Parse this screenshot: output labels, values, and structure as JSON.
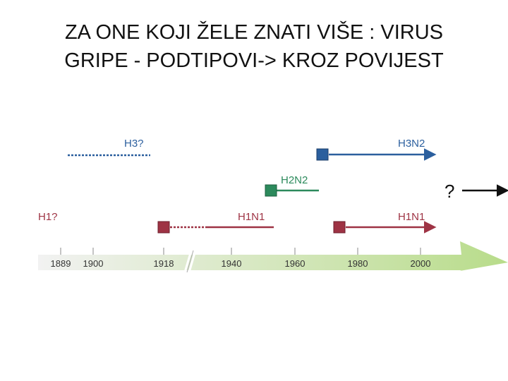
{
  "title": {
    "line1": "ZA ONE KOJI ŽELE ZNATI VIŠE : VIRUS",
    "line2": "GRIPE - PODTIPOVI-> KROZ POVIJEST"
  },
  "timeline": {
    "years": [
      "1889",
      "1900",
      "1918",
      "1940",
      "1960",
      "1980",
      "2000"
    ]
  },
  "subtypes": {
    "h3_unknown": "H3?",
    "h3n2": "H3N2",
    "h2n2": "H2N2",
    "h1_unknown": "H1?",
    "h1n1_first": "H1N1",
    "h1n1_second": "H1N1",
    "future": "?"
  },
  "colors": {
    "blue": "#2b5f9e",
    "green": "#2c8a5c",
    "maroon": "#9e3344",
    "timeline_start": "#f2f2f2",
    "timeline_end": "#b8dc8a"
  }
}
